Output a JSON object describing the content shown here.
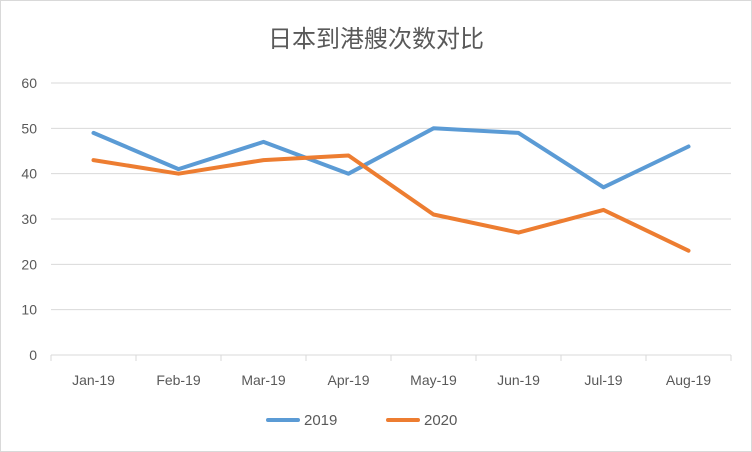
{
  "chart_data": {
    "type": "line",
    "title": "日本到港艘次数对比",
    "categories": [
      "Jan-19",
      "Feb-19",
      "Mar-19",
      "Apr-19",
      "May-19",
      "Jun-19",
      "Jul-19",
      "Aug-19"
    ],
    "series": [
      {
        "name": "2019",
        "color": "#5b9bd5",
        "values": [
          49,
          41,
          47,
          40,
          50,
          49,
          37,
          46
        ]
      },
      {
        "name": "2020",
        "color": "#ed7d31",
        "values": [
          43,
          40,
          43,
          44,
          31,
          27,
          32,
          23
        ]
      }
    ],
    "ylim": [
      0,
      60
    ],
    "yticks": [
      0,
      10,
      20,
      30,
      40,
      50,
      60
    ],
    "grid": true,
    "legend": "bottom"
  }
}
